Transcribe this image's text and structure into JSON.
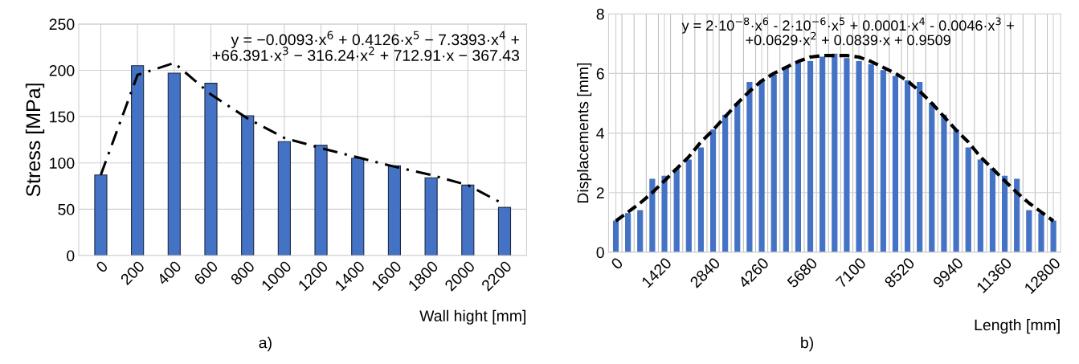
{
  "chart_data": [
    {
      "type": "bar",
      "ylabel": "Stress [MPa]",
      "xlabel": "Wall hight [mm]",
      "categories": [
        "0",
        "200",
        "400",
        "600",
        "800",
        "1000",
        "1200",
        "1400",
        "1600",
        "1800",
        "2000",
        "2200"
      ],
      "series": [
        {
          "color": "#4472c4",
          "values": [
            87,
            205,
            197,
            186,
            151,
            123,
            119,
            105,
            97,
            84,
            76,
            52
          ]
        },
        {
          "type": "line",
          "color": "#000000",
          "line_style": "dashdot",
          "values": [
            87,
            195,
            208,
            174,
            148,
            127,
            116,
            106,
            96,
            87,
            76,
            55
          ]
        }
      ],
      "ylim": [
        0,
        250
      ],
      "yticks": [
        0,
        50,
        100,
        150,
        200,
        250
      ],
      "grid": true,
      "annotations": [
        "y = −0.0093·x$^{6}$ + 0.4126·x$^{5}$ − 7.3393·x$^{4}$ +\n+66.391·x$^{3}$ − 316.24·x$^{2}$ + 712.91·x − 367.43",
        "a)"
      ]
    },
    {
      "type": "bar",
      "ylabel": "Displacements [mm]",
      "xlabel": "Length [mm]",
      "categories": [
        "0",
        null,
        null,
        null,
        "1420",
        null,
        null,
        null,
        "2840",
        null,
        null,
        null,
        "4260",
        null,
        null,
        null,
        "5680",
        null,
        null,
        null,
        "7100",
        null,
        null,
        null,
        "8520",
        null,
        null,
        null,
        "9940",
        null,
        null,
        null,
        "11360",
        null,
        null,
        null,
        "12800"
      ],
      "series": [
        {
          "color": "#4472c4",
          "values": [
            1.05,
            1.3,
            1.4,
            2.45,
            2.55,
            2.8,
            3.1,
            3.5,
            4.1,
            4.6,
            5.0,
            5.7,
            5.75,
            5.95,
            6.2,
            6.35,
            6.4,
            6.55,
            6.65,
            6.5,
            6.4,
            6.3,
            6.1,
            5.9,
            5.75,
            5.7,
            5.0,
            4.6,
            4.1,
            3.5,
            3.1,
            2.8,
            2.55,
            2.45,
            1.4,
            1.3,
            1.05
          ]
        },
        {
          "type": "line",
          "color": "#000000",
          "line_style": "dashed",
          "values": [
            1.05,
            1.35,
            1.65,
            2.0,
            2.4,
            2.8,
            3.2,
            3.7,
            4.1,
            4.55,
            5.0,
            5.4,
            5.75,
            6.0,
            6.2,
            6.4,
            6.55,
            6.6,
            6.6,
            6.6,
            6.55,
            6.4,
            6.2,
            6.0,
            5.75,
            5.4,
            5.0,
            4.55,
            4.1,
            3.7,
            3.2,
            2.8,
            2.4,
            2.0,
            1.65,
            1.35,
            1.05
          ]
        }
      ],
      "ylim": [
        0,
        8
      ],
      "yticks": [
        0,
        2,
        4,
        6,
        8
      ],
      "grid": true,
      "annotations": [
        "y = 2·10$^{−8}$·x$^{6}$ - 2·10$^{−6}$·x$^{5}$ + 0.0001·x$^{4}$ - 0.0046·x$^{3}$ +\n+0.0629·x$^{2}$ + 0.0839·x + 0.9509",
        "b)"
      ]
    }
  ]
}
